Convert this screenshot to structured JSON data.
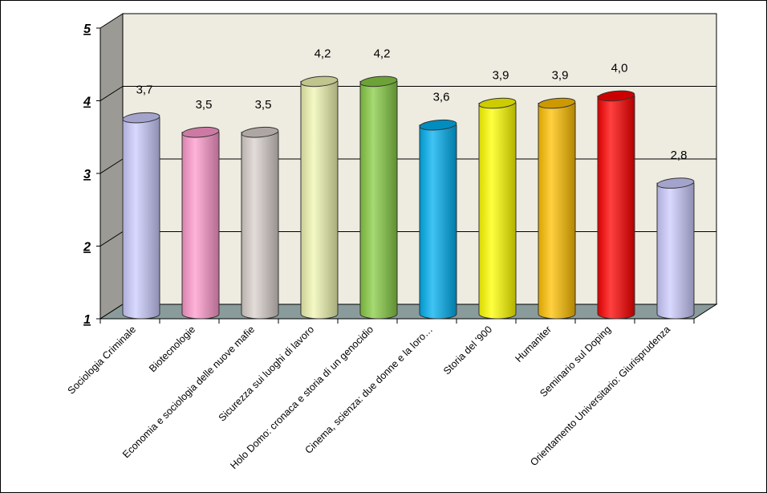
{
  "chart_data": {
    "type": "bar",
    "style": "3d-cylinder",
    "title": "",
    "xlabel": "",
    "ylabel": "",
    "ylim": [
      1,
      5
    ],
    "yticks": [
      "1",
      "2",
      "3",
      "4",
      "5"
    ],
    "grid": true,
    "legend": null,
    "categories": [
      "Sociologia Criminale",
      "Biotecnologie",
      "Economia e sociologia delle nuove mafie",
      "Sicurezza sui luoghi di lavoro",
      "Holo Domo: cronaca e storia di un genocidio",
      "Cinema, scienza: due donne e la loro…",
      "Storia del '900",
      "Humaniter",
      "Seminario sul Doping",
      "Orientamento Universitario: Giurisprudenza"
    ],
    "values": [
      3.7,
      3.5,
      3.5,
      4.2,
      4.2,
      3.6,
      3.9,
      3.9,
      4.0,
      2.8
    ],
    "value_labels": [
      "3,7",
      "3,5",
      "3,5",
      "4,2",
      "4,2",
      "3,6",
      "3,9",
      "3,9",
      "4,0",
      "2,8"
    ],
    "colors": [
      "#ccccff",
      "#ff99cc",
      "#d9d0cc",
      "#f0f5b0",
      "#88cc44",
      "#00b0f0",
      "#ffff00",
      "#ffc000",
      "#ff0000",
      "#ccccff"
    ]
  },
  "colors": {
    "back_wall": "#eeece1",
    "side_wall": "#9c9a94",
    "floor": "#8a9b9b",
    "gridline": "#000000"
  }
}
